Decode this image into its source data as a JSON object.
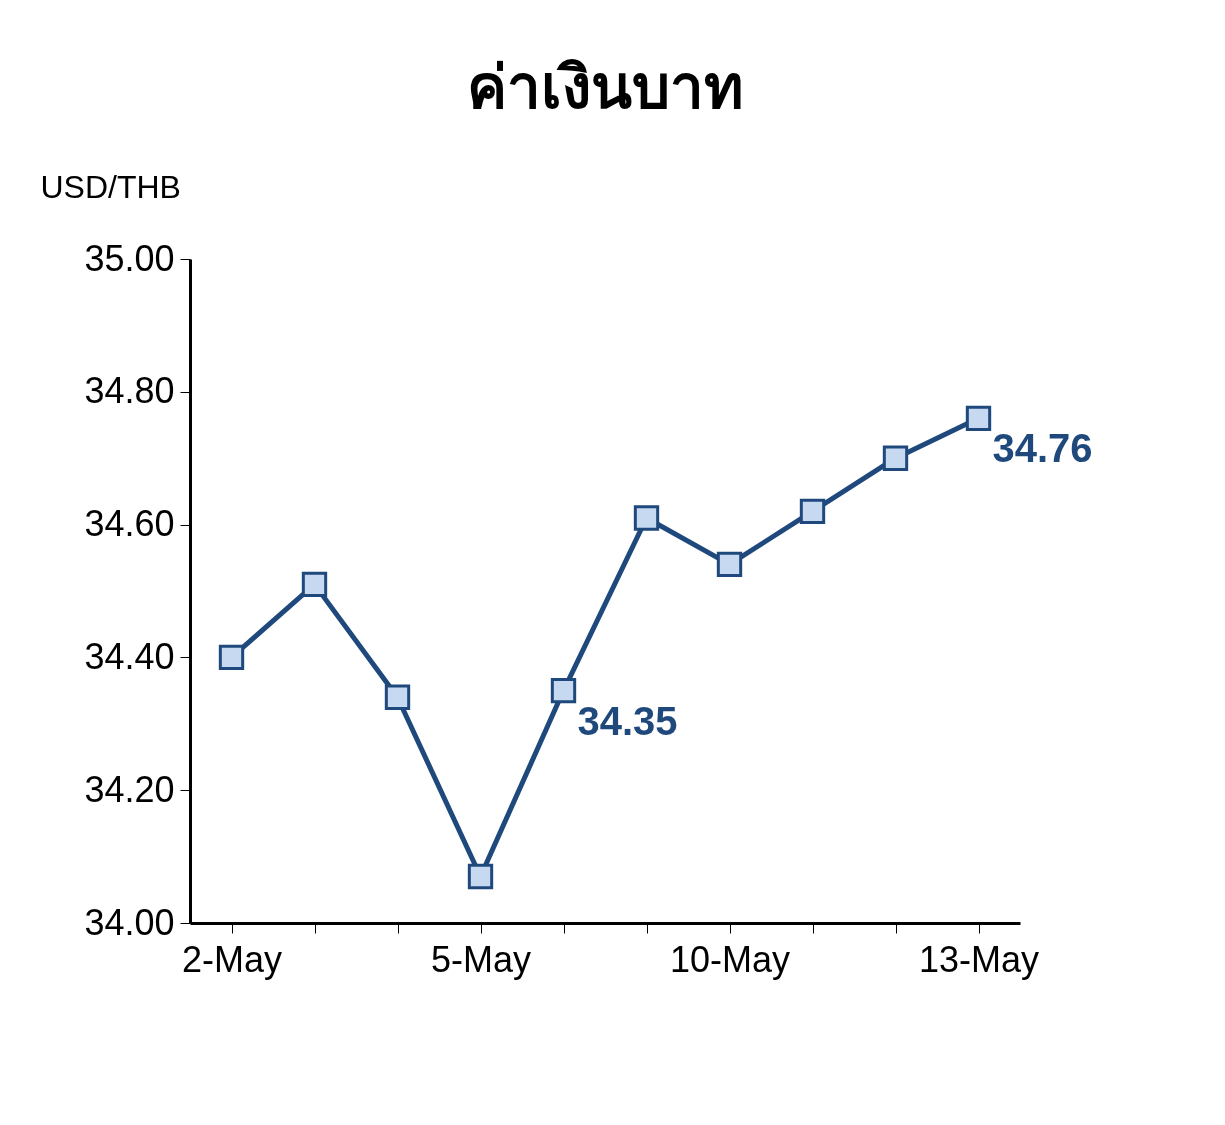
{
  "chart_data": {
    "type": "line",
    "title": "ค่าเงินบาท",
    "ylabel": "USD/THB",
    "categories": [
      "2-May",
      null,
      null,
      "5-May",
      null,
      null,
      "10-May",
      null,
      null,
      "13-May"
    ],
    "series": [
      {
        "color": "#1f497d",
        "values": [
          34.4,
          34.51,
          34.34,
          34.07,
          34.35,
          34.61,
          34.54,
          34.62,
          34.7,
          34.76
        ],
        "value_labels": [
          null,
          null,
          null,
          null,
          "34.35",
          null,
          null,
          null,
          null,
          "34.76"
        ]
      }
    ],
    "ylim": [
      34.0,
      35.0
    ],
    "yticks": [
      {
        "value": 34.0,
        "label": "34.00"
      },
      {
        "value": 34.2,
        "label": "34.20"
      },
      {
        "value": 34.4,
        "label": "34.40"
      },
      {
        "value": 34.6,
        "label": "34.60"
      },
      {
        "value": 34.8,
        "label": "34.80"
      },
      {
        "value": 35.0,
        "label": "35.00"
      }
    ],
    "grid": false,
    "marker": "square",
    "line_style": "solid"
  }
}
